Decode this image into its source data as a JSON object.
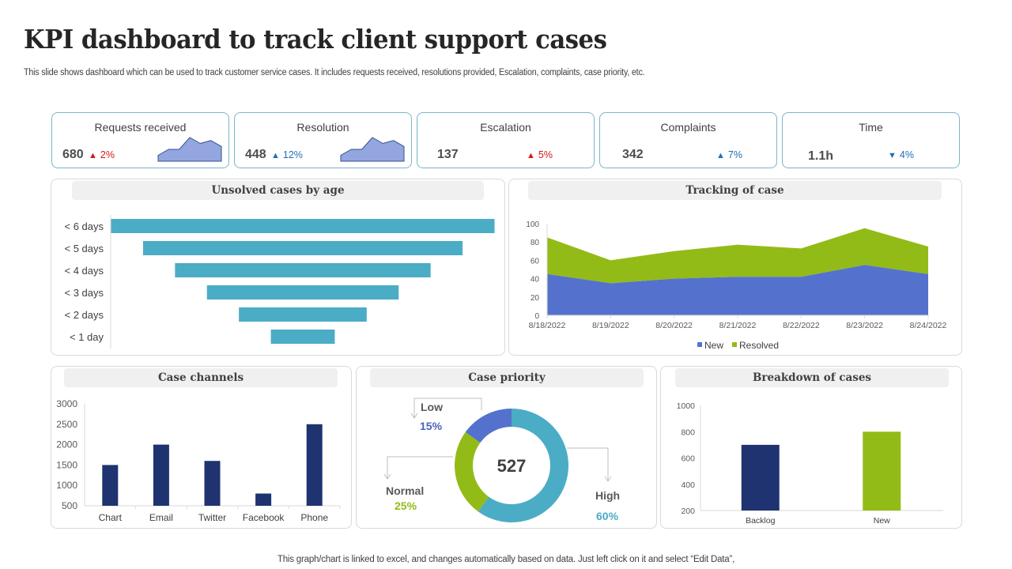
{
  "header": {
    "title": "KPI dashboard to track client support cases",
    "subtitle": "This slide shows dashboard which can be used to track customer service cases. It includes requests received, resolutions provided, Escalation, complaints, case priority, etc."
  },
  "kpis": [
    {
      "title": "Requests received",
      "value": "680",
      "direction": "up",
      "delta": "2%",
      "color": "#d11919",
      "sparkline": [
        2,
        4,
        4,
        8,
        6,
        7,
        5
      ]
    },
    {
      "title": "Resolution",
      "value": "448",
      "direction": "up",
      "delta": "12%",
      "color": "#1f6fb5",
      "sparkline": [
        2,
        4,
        4,
        8,
        6,
        7,
        5
      ]
    },
    {
      "title": "Escalation",
      "value": "137",
      "direction": "up",
      "delta": "5%",
      "color": "#d11919"
    },
    {
      "title": "Complaints",
      "value": "342",
      "direction": "up",
      "delta": "7%",
      "color": "#1f6fb5"
    },
    {
      "title": "Time",
      "value": "1.1h",
      "direction": "down",
      "delta": "4%",
      "color": "#1f6fb5"
    }
  ],
  "icons": {
    "up": "▲",
    "down": "▼"
  },
  "colors": {
    "teal": "#4bacc6",
    "navy": "#1f3370",
    "green": "#93bb17",
    "indigo": "#5472cd",
    "sparkline": "#93a6e0"
  },
  "chart_data": [
    {
      "id": "unsolved",
      "type": "bar",
      "orientation": "horizontal-funnel",
      "title": "Unsolved cases by age",
      "categories": [
        "< 6 days",
        "< 5 days",
        "< 4 days",
        "< 3 days",
        "< 2 days",
        "< 1 day"
      ],
      "values": [
        6,
        5,
        4,
        3,
        2,
        1
      ],
      "color": "#4bacc6"
    },
    {
      "id": "tracking",
      "type": "area",
      "stacked": true,
      "title": "Tracking of case",
      "x": [
        "8/18/2022",
        "8/19/2022",
        "8/20/2022",
        "8/21/2022",
        "8/22/2022",
        "8/23/2022",
        "8/24/2022"
      ],
      "series": [
        {
          "name": "New",
          "values": [
            45,
            35,
            40,
            42,
            42,
            55,
            45
          ],
          "color": "#5472cd"
        },
        {
          "name": "Resolved",
          "values": [
            40,
            25,
            30,
            35,
            31,
            40,
            30
          ],
          "color": "#93bb17"
        }
      ],
      "ylim": [
        0,
        100
      ],
      "yticks": [
        0,
        20,
        40,
        60,
        80,
        100
      ],
      "legend": "bottom"
    },
    {
      "id": "channels",
      "type": "bar",
      "title": "Case channels",
      "categories": [
        "Chart",
        "Email",
        "Twitter",
        "Facebook",
        "Phone"
      ],
      "values": [
        1500,
        2000,
        1600,
        800,
        2500
      ],
      "ylim": [
        500,
        3000
      ],
      "yticks": [
        500,
        1000,
        1500,
        2000,
        2500,
        3000
      ],
      "color": "#1f3370"
    },
    {
      "id": "priority",
      "type": "pie",
      "donut": true,
      "title": "Case priority",
      "center_label": "527",
      "slices": [
        {
          "label": "High",
          "value": 60,
          "text": "60%",
          "color": "#4bacc6"
        },
        {
          "label": "Normal",
          "value": 25,
          "text": "25%",
          "color": "#93bb17"
        },
        {
          "label": "Low",
          "value": 15,
          "text": "15%",
          "color": "#5472cd"
        }
      ]
    },
    {
      "id": "breakdown",
      "type": "bar",
      "title": "Breakdown of cases",
      "categories": [
        "Backlog",
        "New"
      ],
      "values": [
        700,
        800
      ],
      "colors": [
        "#1f3370",
        "#93bb17"
      ],
      "ylim": [
        200,
        1000
      ],
      "yticks": [
        200,
        400,
        600,
        800,
        1000
      ]
    }
  ],
  "footer": "This graph/chart is linked to excel,  and changes automatically based on data. Just left click on it and select “Edit Data”,"
}
